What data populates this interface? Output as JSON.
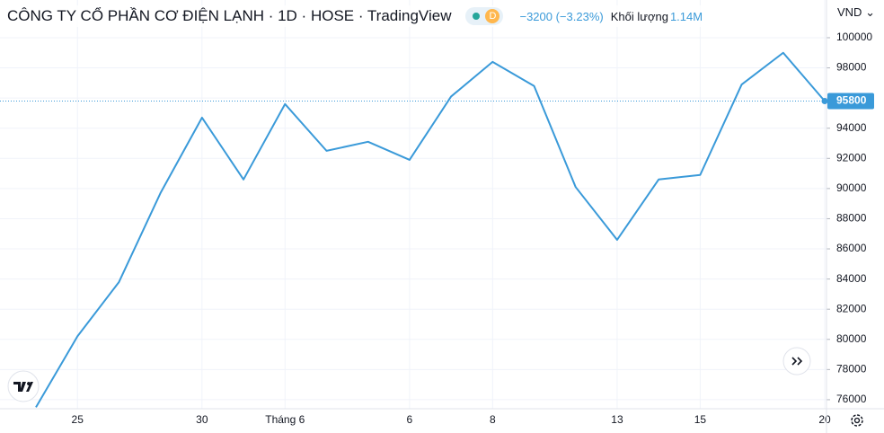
{
  "chart_data": {
    "type": "line",
    "title": "CÔNG TY CỔ PHẦN CƠ ĐIỆN LẠNH · 1D · HOSE · TradingView",
    "badge": "D",
    "change": "−3200 (−3.23%)",
    "volume_label": "Khối lượng",
    "volume": "1.14M",
    "currency": "VND",
    "categories": [
      null,
      "25",
      null,
      null,
      "30",
      null,
      "Tháng 6",
      null,
      null,
      "6",
      null,
      "8",
      null,
      null,
      "13",
      null,
      "15",
      null,
      null,
      "20"
    ],
    "values": [
      75500,
      80200,
      83800,
      89700,
      94700,
      90600,
      95600,
      92500,
      93100,
      91900,
      96100,
      98400,
      96800,
      90100,
      86600,
      90600,
      90900,
      96900,
      99000,
      95800
    ],
    "color": "#3a9ad9",
    "ylim": [
      75400,
      102500
    ],
    "yticks": [
      76000,
      78000,
      80000,
      82000,
      84000,
      86000,
      88000,
      90000,
      92000,
      94000,
      96000,
      98000,
      100000
    ],
    "grid": true
  }
}
